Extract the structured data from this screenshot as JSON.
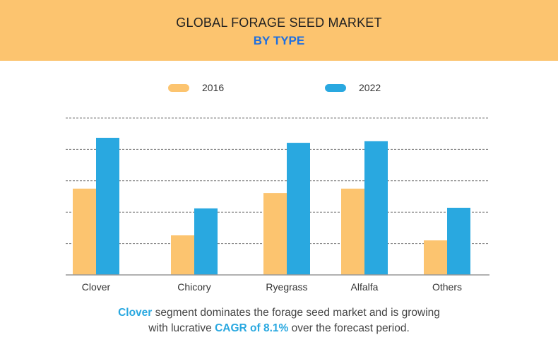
{
  "header": {
    "title": "GLOBAL FORAGE SEED MARKET",
    "subtitle": "BY TYPE"
  },
  "colors": {
    "header_bg": "#fcc46f",
    "series_2016": "#fcc46f",
    "series_2022": "#29a8e0",
    "subtitle": "#1e6fe0"
  },
  "chart_data": {
    "type": "bar",
    "title": "GLOBAL FORAGE SEED MARKET",
    "subtitle": "BY TYPE",
    "categories": [
      "Clover",
      "Chicory",
      "Ryegrass",
      "Alfalfa",
      "Others"
    ],
    "series": [
      {
        "name": "2016",
        "values": [
          2.75,
          1.26,
          2.61,
          2.75,
          1.1
        ]
      },
      {
        "name": "2022",
        "values": [
          4.37,
          2.12,
          4.21,
          4.26,
          2.14
        ]
      }
    ],
    "ylim": [
      0,
      5
    ],
    "y_tick_labels": "none",
    "grid": true,
    "legend": "top"
  },
  "caption": {
    "line1_highlight": "Clover",
    "line1_rest": " segment dominates the forage seed market and is growing",
    "line2_start": "with lucrative ",
    "line2_highlight": "CAGR of 8.1%",
    "line2_end": " over the forecast period."
  }
}
